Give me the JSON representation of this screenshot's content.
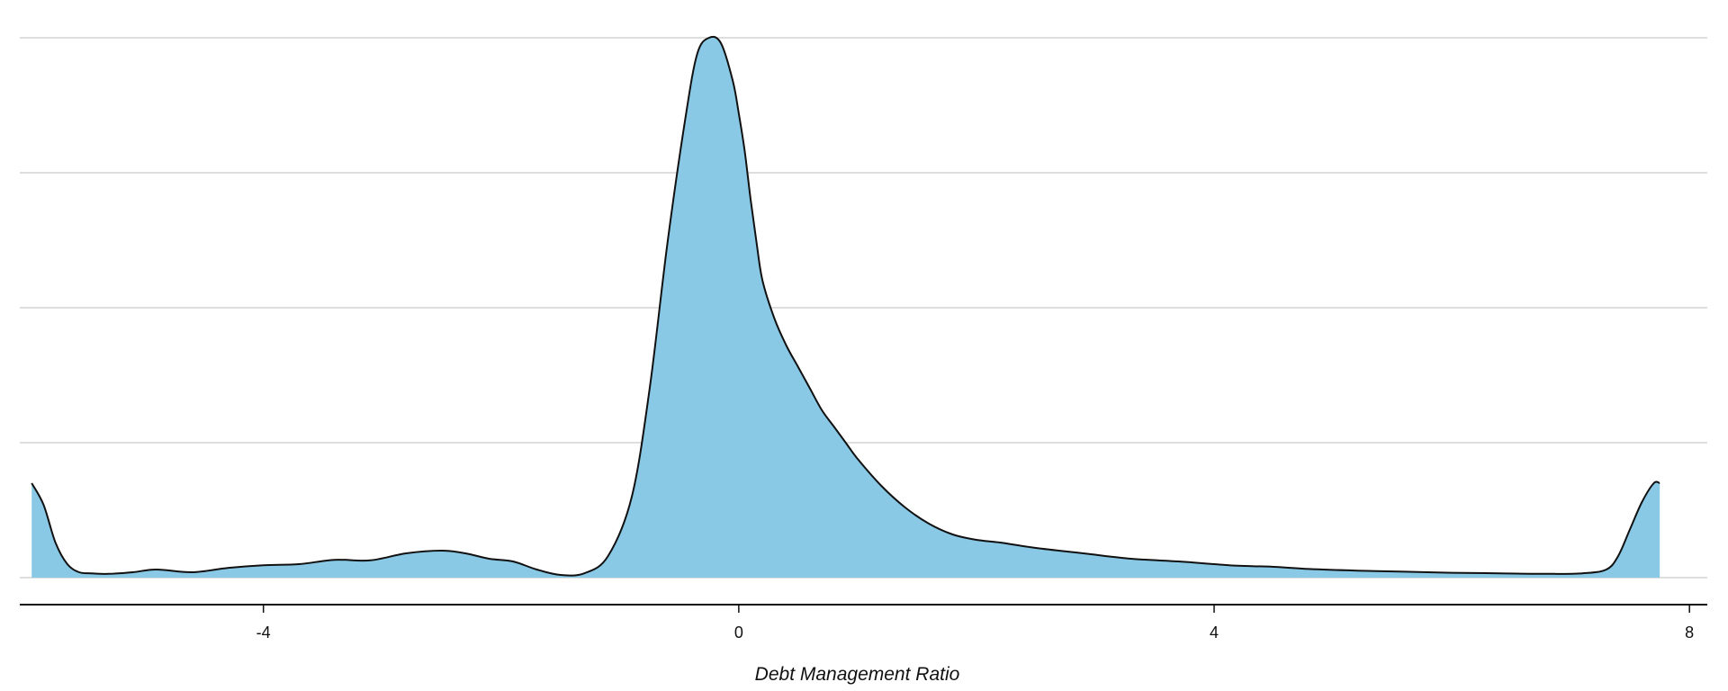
{
  "chart_data": {
    "type": "area",
    "title": "",
    "xlabel": "Debt Management Ratio",
    "ylabel": "",
    "xlim": [
      -6.05,
      8.15
    ],
    "ylim": [
      0,
      1
    ],
    "xticks": [
      -4,
      0,
      4,
      8
    ],
    "y_gridlines": [
      0,
      0.25,
      0.5,
      0.75,
      1.0
    ],
    "grid": "horizontal",
    "legend": "none",
    "fill_color": "#89c9e6",
    "line_color": "#111111",
    "series": [
      {
        "x": [
          -5.95,
          -5.85,
          -5.75,
          -5.65,
          -5.55,
          -5.45,
          -5.3,
          -5.1,
          -4.9,
          -4.6,
          -4.3,
          -4.0,
          -3.7,
          -3.4,
          -3.1,
          -2.8,
          -2.5,
          -2.3,
          -2.1,
          -1.9,
          -1.7,
          -1.5,
          -1.3,
          -1.1,
          -0.9,
          -0.75,
          -0.6,
          -0.45,
          -0.35,
          -0.25,
          -0.15,
          -0.05,
          0.0,
          0.05,
          0.1,
          0.15,
          0.2,
          0.3,
          0.4,
          0.5,
          0.6,
          0.7,
          0.8,
          0.9,
          1.0,
          1.2,
          1.4,
          1.6,
          1.8,
          2.0,
          2.2,
          2.5,
          2.9,
          3.3,
          3.7,
          4.0,
          4.2,
          4.5,
          4.8,
          5.2,
          5.6,
          6.0,
          6.4,
          6.8,
          7.1,
          7.3,
          7.4,
          7.5,
          7.6,
          7.7,
          7.75
        ],
        "y": [
          0.175,
          0.135,
          0.065,
          0.025,
          0.01,
          0.008,
          0.007,
          0.01,
          0.015,
          0.01,
          0.018,
          0.023,
          0.025,
          0.033,
          0.032,
          0.045,
          0.05,
          0.045,
          0.035,
          0.03,
          0.015,
          0.005,
          0.008,
          0.04,
          0.15,
          0.35,
          0.62,
          0.85,
          0.97,
          1.0,
          0.99,
          0.92,
          0.86,
          0.79,
          0.7,
          0.62,
          0.55,
          0.48,
          0.43,
          0.39,
          0.35,
          0.31,
          0.28,
          0.25,
          0.22,
          0.17,
          0.13,
          0.1,
          0.08,
          0.07,
          0.065,
          0.055,
          0.045,
          0.035,
          0.03,
          0.025,
          0.022,
          0.02,
          0.016,
          0.013,
          0.011,
          0.009,
          0.008,
          0.007,
          0.008,
          0.015,
          0.04,
          0.09,
          0.14,
          0.175,
          0.175
        ]
      }
    ]
  }
}
